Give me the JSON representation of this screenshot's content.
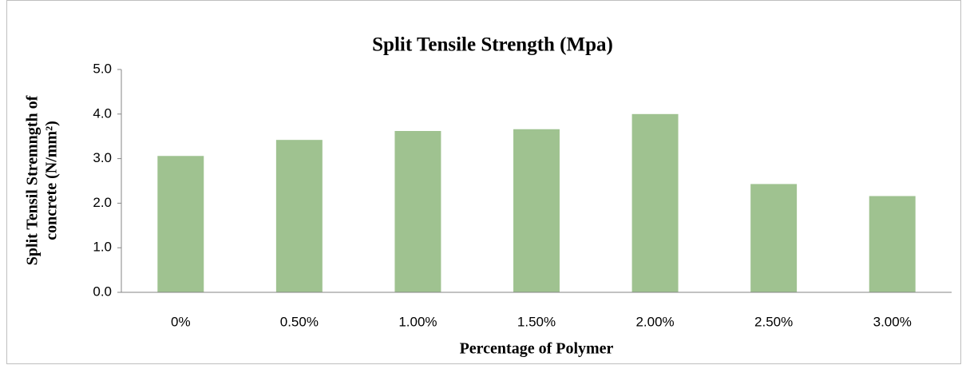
{
  "chart_data": {
    "type": "bar",
    "title": "Split Tensile Strength (Mpa)",
    "xlabel": "Percentage of Polymer",
    "ylabel": [
      "Split Tensil Stremngth of",
      "concrete (N/mm²)"
    ],
    "categories": [
      "0%",
      "0.50%",
      "1.00%",
      "1.50%",
      "2.00%",
      "2.50%",
      "3.00%"
    ],
    "values": [
      3.06,
      3.42,
      3.62,
      3.66,
      4.0,
      2.43,
      2.16
    ],
    "color": "#9fc290",
    "ylim": [
      0,
      5
    ],
    "yticks": [
      {
        "value": 0,
        "label": "0.0"
      },
      {
        "value": 1,
        "label": "1.0"
      },
      {
        "value": 2,
        "label": "2.0"
      },
      {
        "value": 3,
        "label": "3.0"
      },
      {
        "value": 4,
        "label": "4.0"
      },
      {
        "value": 5,
        "label": "5.0"
      }
    ],
    "grid": false
  }
}
